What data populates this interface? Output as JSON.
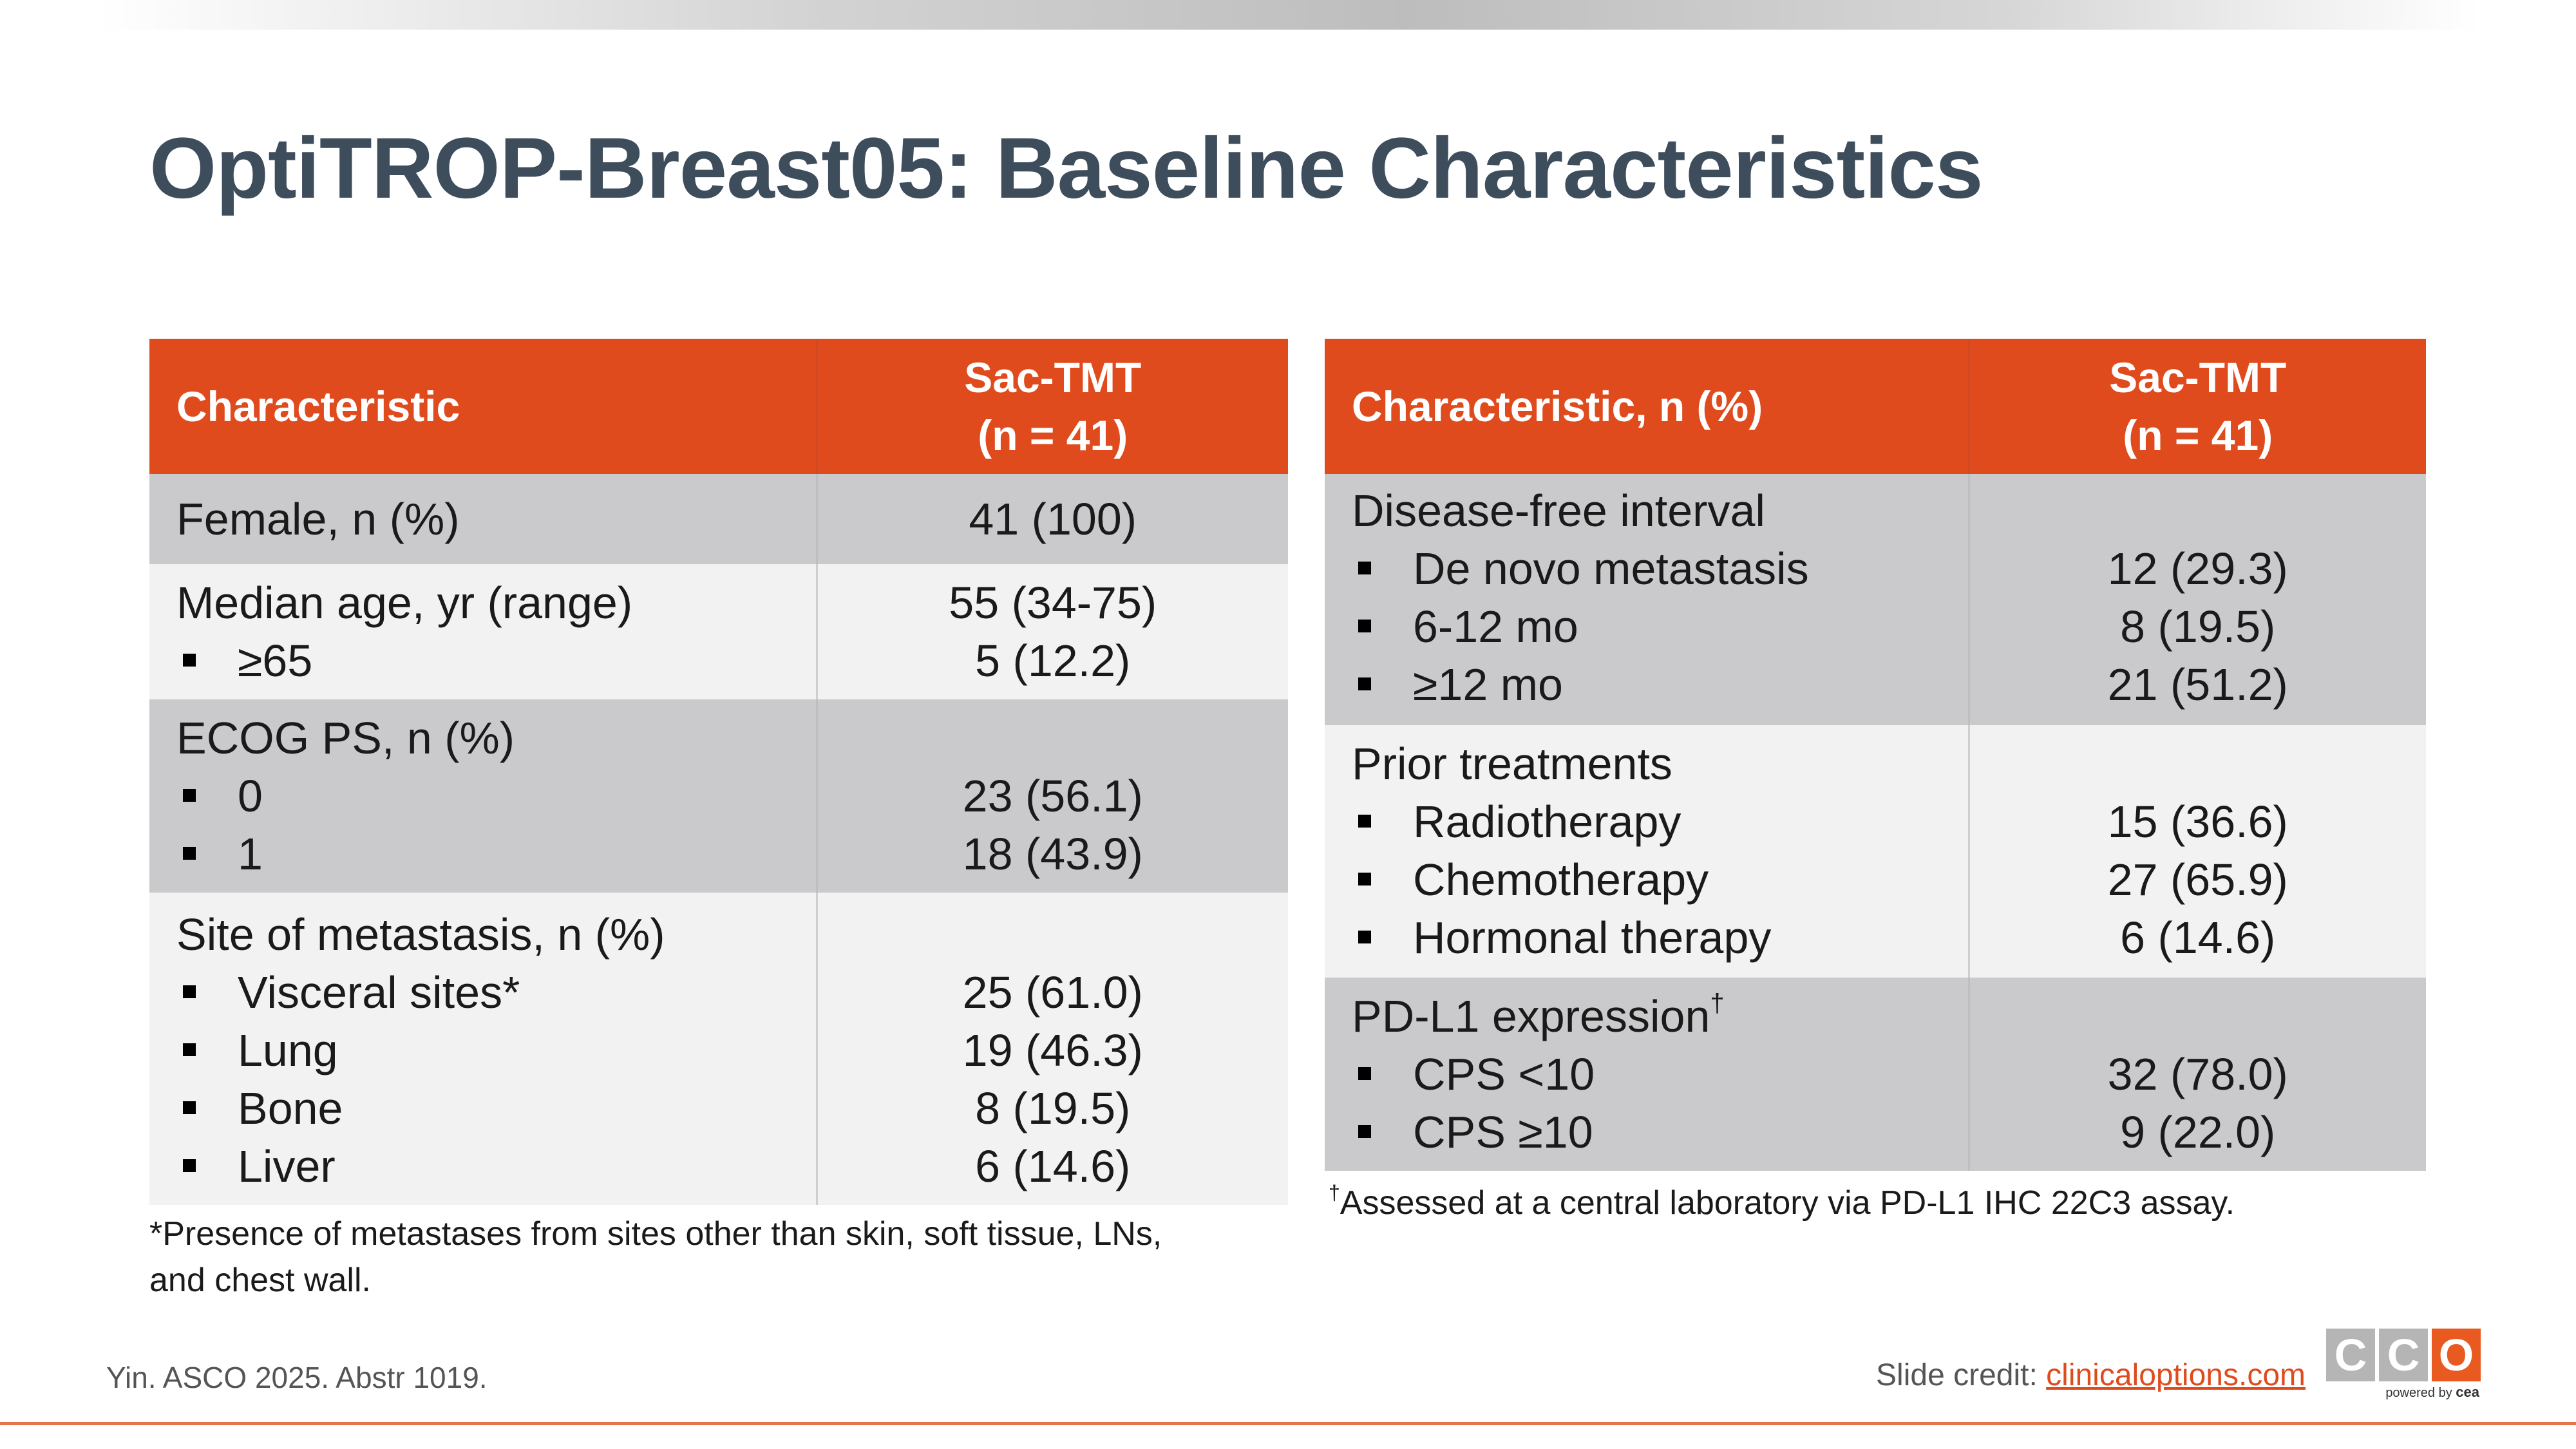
{
  "title": "OptiTROP-Breast05: Baseline Characteristics",
  "left_table": {
    "header": {
      "col1": "Characteristic",
      "col2_line1": "Sac-TMT",
      "col2_line2": "(n = 41)"
    },
    "rows": [
      {
        "label": "Female, n (%)",
        "value": "41 (100)"
      },
      {
        "label": "Median age, yr (range)",
        "value": "55 (34-75)",
        "bullets": [
          {
            "label": "≥65",
            "value": "5 (12.2)"
          }
        ]
      },
      {
        "label": "ECOG PS, n (%)",
        "bullets": [
          {
            "label": "0",
            "value": "23 (56.1)"
          },
          {
            "label": "1",
            "value": "18 (43.9)"
          }
        ]
      },
      {
        "label": "Site of metastasis, n (%)",
        "bullets": [
          {
            "label": "Visceral sites*",
            "value": "25 (61.0)"
          },
          {
            "label": "Lung",
            "value": "19 (46.3)"
          },
          {
            "label": "Bone",
            "value": "8 (19.5)"
          },
          {
            "label": "Liver",
            "value": "6 (14.6)"
          }
        ]
      }
    ],
    "footnote_line1": "*Presence of metastases from sites other than skin, soft tissue, LNs,",
    "footnote_line2": "and chest wall."
  },
  "right_table": {
    "header": {
      "col1": "Characteristic, n (%)",
      "col2_line1": "Sac-TMT",
      "col2_line2": "(n = 41)"
    },
    "rows": [
      {
        "label": "Disease-free interval",
        "bullets": [
          {
            "label": "De novo metastasis",
            "value": "12 (29.3)"
          },
          {
            "label": "6-12 mo",
            "value": "8 (19.5)"
          },
          {
            "label": "≥12 mo",
            "value": "21 (51.2)"
          }
        ]
      },
      {
        "label": "Prior treatments",
        "bullets": [
          {
            "label": "Radiotherapy",
            "value": "15 (36.6)"
          },
          {
            "label": "Chemotherapy",
            "value": "27 (65.9)"
          },
          {
            "label": "Hormonal therapy",
            "value": "6 (14.6)"
          }
        ]
      },
      {
        "label": "PD-L1 expression",
        "label_sup": "†",
        "bullets": [
          {
            "label": "CPS <10",
            "value": "32 (78.0)"
          },
          {
            "label": "CPS ≥10",
            "value": "9 (22.0)"
          }
        ]
      }
    ],
    "footnote_sup": "†",
    "footnote": "Assessed at a central laboratory via PD-L1 IHC 22C3 assay."
  },
  "citation": "Yin. ASCO 2025. Abstr 1019.",
  "credit": {
    "label": "Slide credit: ",
    "link": "clinicaloptions.com"
  },
  "logo": {
    "letters": [
      "C",
      "C",
      "O"
    ],
    "tag_prefix": "powered by",
    "tag_brand": "cea"
  },
  "colors": {
    "header": "#e04b1e",
    "title": "#3e4d5c",
    "row_dark": "#cacacc",
    "row_light": "#f2f2f2",
    "accent": "#e04b1e"
  }
}
